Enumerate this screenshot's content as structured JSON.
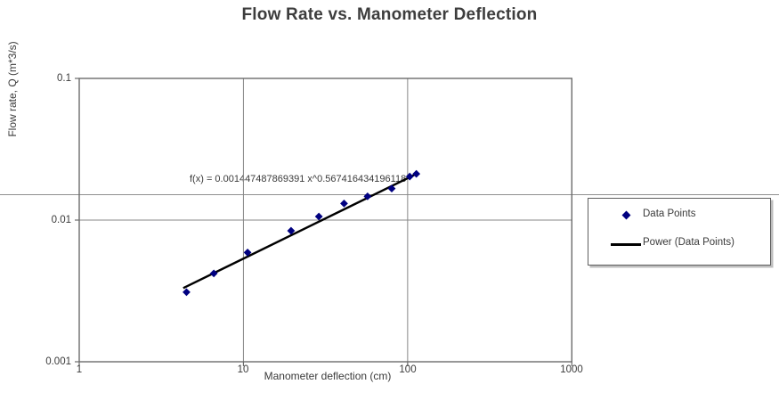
{
  "title": "Flow Rate vs. Manometer Deflection",
  "axes": {
    "x_title": "Manometer deflection (cm)",
    "y_title": "Flow rate, Q (m*3/s)",
    "x_tick_labels": [
      "1",
      "10",
      "100",
      "1000"
    ],
    "y_tick_labels": [
      "0.1",
      "0.01",
      "0.001"
    ]
  },
  "equation": "f(x) = 0.001447487869391 x^0.567416434196118",
  "legend": {
    "items": [
      {
        "label": "Data Points",
        "marker": "diamond",
        "color": "#000080"
      },
      {
        "label": "Power (Data Points)",
        "marker": "line",
        "color": "#000000"
      }
    ]
  },
  "colors": {
    "marker": "#000080",
    "trendline": "#000000",
    "gridline": "#878787",
    "plot_border": "#6b6b6b",
    "stray_rule": "#8f8f8f"
  },
  "chart_data": {
    "type": "scatter",
    "title": "Flow Rate vs. Manometer Deflection",
    "xlabel": "Manometer deflection (cm)",
    "ylabel": "Flow rate, Q (m*3/s)",
    "x_scale": "log",
    "y_scale": "log",
    "xlim": [
      1,
      1000
    ],
    "ylim": [
      0.001,
      0.1
    ],
    "x_ticks": [
      1,
      10,
      100,
      1000
    ],
    "y_ticks": [
      0.1,
      0.01,
      0.001
    ],
    "grid": "major",
    "legend_position": "right-outside",
    "annotation": "f(x) = 0.001447487869391 x^0.567416434196118",
    "series": [
      {
        "name": "Data Points",
        "type": "scatter",
        "marker": "diamond",
        "color": "#000080",
        "points": [
          [
            4.5,
            0.0031
          ],
          [
            6.6,
            0.0042
          ],
          [
            10.6,
            0.0059
          ],
          [
            19.5,
            0.0084
          ],
          [
            28.8,
            0.0106
          ],
          [
            41,
            0.0131
          ],
          [
            57,
            0.0147
          ],
          [
            80,
            0.0167
          ],
          [
            103,
            0.0203
          ],
          [
            113,
            0.0212
          ]
        ]
      },
      {
        "name": "Power (Data Points)",
        "type": "power_fit",
        "color": "#000000",
        "coefficient": 0.001447487869391,
        "exponent": 0.567416434196118,
        "x_range": [
          4.3,
          116
        ]
      }
    ]
  }
}
